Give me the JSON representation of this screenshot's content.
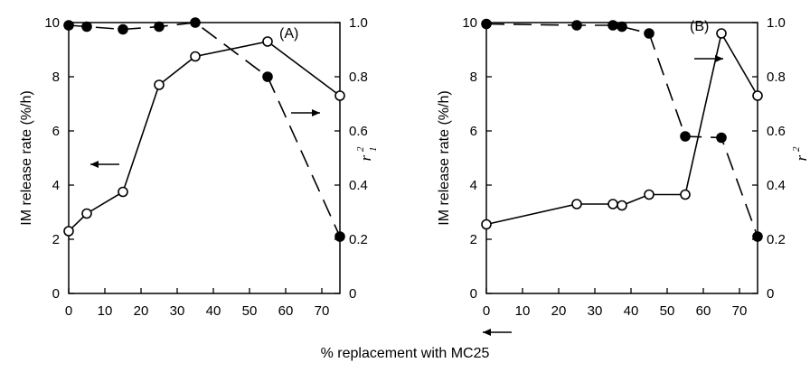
{
  "figure": {
    "xlabel": "% replacement with MC25"
  },
  "chart_data": [
    {
      "type": "line",
      "panel_label": "(A)",
      "ylabel_left": "IM release rate (%/h)",
      "ylabel_right": "r",
      "ylabel_right_sup": "2",
      "ylabel_right_sub": "1",
      "xlim": [
        0,
        75
      ],
      "ylim_left": [
        0,
        10
      ],
      "ylim_right": [
        0,
        1.0
      ],
      "x_ticks": [
        "0",
        "10",
        "20",
        "30",
        "40",
        "50",
        "60",
        "70"
      ],
      "y_left_ticks": [
        "0",
        "2",
        "4",
        "6",
        "8",
        "10"
      ],
      "y_right_ticks": [
        "0",
        "0.2",
        "0.4",
        "0.6",
        "0.8",
        "1.0"
      ],
      "grid": false,
      "series": [
        {
          "axis": "left",
          "marker": "open-circle",
          "line": "solid",
          "x": [
            0,
            5,
            15,
            25,
            35,
            55,
            75
          ],
          "values": [
            2.3,
            2.95,
            3.75,
            7.7,
            8.75,
            9.3,
            7.3
          ]
        },
        {
          "axis": "right",
          "marker": "filled-circle",
          "line": "dashed",
          "x": [
            0,
            5,
            15,
            25,
            35,
            55,
            75
          ],
          "values": [
            0.99,
            0.985,
            0.975,
            0.985,
            1.0,
            0.8,
            0.21
          ]
        }
      ],
      "annotations": [
        {
          "type": "arrow",
          "direction": "left",
          "points_to": "left-axis",
          "at": [
            8,
            5.6
          ]
        },
        {
          "type": "arrow",
          "direction": "right",
          "points_to": "right-axis",
          "at": [
            67.5,
            0.66
          ]
        }
      ]
    },
    {
      "type": "line",
      "panel_label": "(B)",
      "ylabel_left": "IM release rate (%/h)",
      "ylabel_right": "r",
      "ylabel_right_sup": "2",
      "ylabel_right_sub": "",
      "xlim": [
        0,
        75
      ],
      "ylim_left": [
        0,
        10
      ],
      "ylim_right": [
        0,
        1.0
      ],
      "x_ticks": [
        "0",
        "10",
        "20",
        "30",
        "40",
        "50",
        "60",
        "70"
      ],
      "y_left_ticks": [
        "0",
        "2",
        "4",
        "6",
        "8",
        "10"
      ],
      "y_right_ticks": [
        "0",
        "0.2",
        "0.4",
        "0.6",
        "0.8",
        "1.0"
      ],
      "grid": false,
      "series": [
        {
          "axis": "left",
          "marker": "open-circle",
          "line": "solid",
          "x": [
            0,
            25,
            35,
            37.5,
            45,
            55,
            65,
            75
          ],
          "values": [
            2.55,
            3.3,
            3.3,
            3.25,
            3.65,
            3.65,
            9.6,
            7.3
          ]
        },
        {
          "axis": "right",
          "marker": "filled-circle",
          "line": "dashed",
          "x": [
            0,
            25,
            35,
            37.5,
            45,
            55,
            65,
            75
          ],
          "values": [
            0.995,
            0.99,
            0.99,
            0.985,
            0.96,
            0.58,
            0.575,
            0.21
          ]
        }
      ],
      "annotations": [
        {
          "type": "arrow",
          "direction": "left",
          "points_to": "left-axis",
          "at": [
            6,
            3.2
          ]
        },
        {
          "type": "arrow",
          "direction": "right",
          "points_to": "right-axis",
          "at": [
            57,
            0.86
          ]
        }
      ]
    }
  ]
}
